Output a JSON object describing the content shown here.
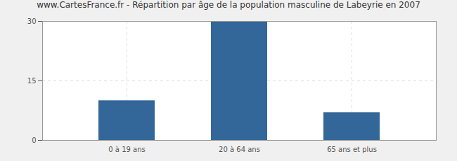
{
  "chart_data": {
    "type": "bar",
    "title": "www.CartesFrance.fr - Répartition par âge de la population masculine de Labeyrie en 2007",
    "categories": [
      "0 à 19 ans",
      "20 à 64 ans",
      "65 ans et plus"
    ],
    "values": [
      10,
      30,
      7
    ],
    "color": "#336699",
    "ylim": [
      0,
      30
    ],
    "yticks": [
      0,
      15,
      30
    ],
    "grid": true
  }
}
